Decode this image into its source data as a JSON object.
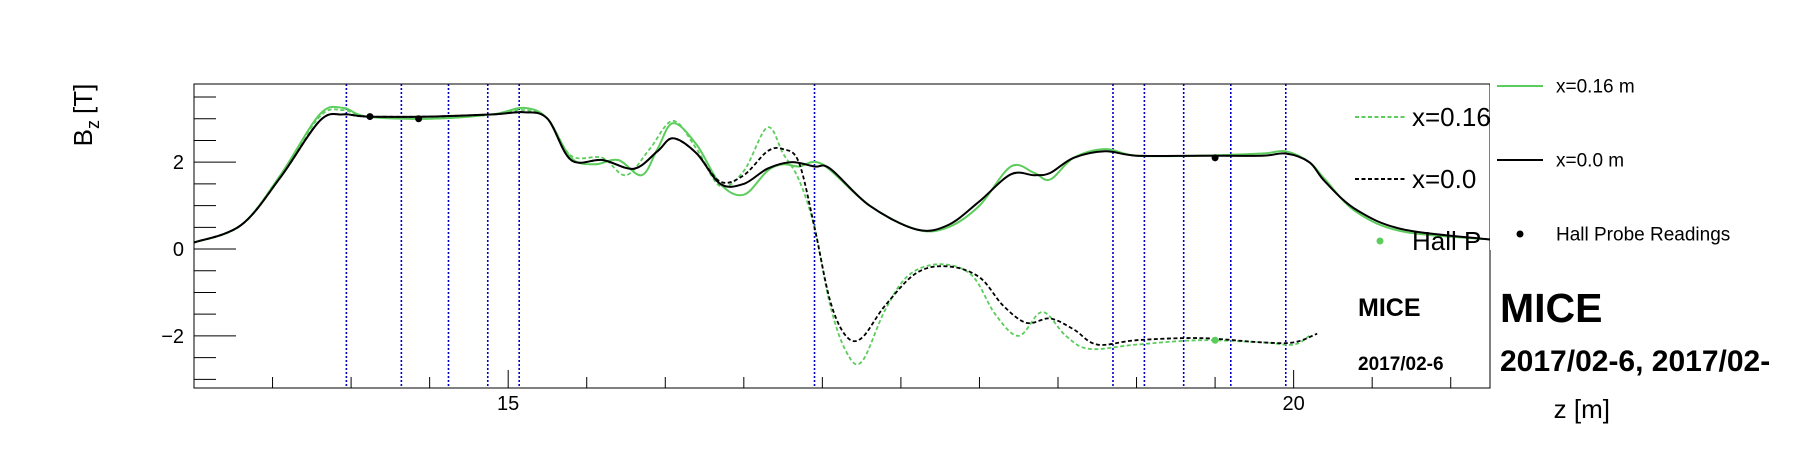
{
  "chart_data": {
    "type": "line",
    "title": "",
    "xlabel": "z [m]",
    "ylabel_main": "B",
    "ylabel_sub": "z",
    "ylabel_unit": "[T]",
    "xlim": [
      13.0,
      21.25
    ],
    "ylim": [
      -3.2,
      3.8
    ],
    "x_ticks": [
      15,
      20
    ],
    "y_ticks": [
      -2,
      0,
      2
    ],
    "y_tick_labels": [
      "−2",
      "0",
      "2"
    ],
    "grid": false,
    "colors": {
      "green": "#5ccd5c",
      "black": "#000000",
      "blue": "#0000cc"
    },
    "vertical_lines": [
      13.97,
      14.32,
      14.62,
      14.87,
      15.07,
      16.95,
      18.85,
      19.05,
      19.3,
      19.6,
      19.95
    ],
    "series": [
      {
        "name": "x=0.16 m",
        "color": "#5ccd5c",
        "style": "solid",
        "width": 2,
        "x": [
          13.0,
          13.3,
          13.55,
          13.8,
          13.95,
          14.1,
          14.5,
          14.9,
          15.1,
          15.25,
          15.4,
          15.55,
          15.7,
          15.85,
          15.95,
          16.05,
          16.2,
          16.35,
          16.5,
          16.65,
          16.75,
          16.85,
          17.0,
          17.3,
          17.6,
          17.8,
          18.0,
          18.2,
          18.35,
          18.45,
          18.6,
          18.8,
          19.0,
          19.4,
          19.8,
          19.95,
          20.1,
          20.2,
          20.4,
          20.7,
          21.25
        ],
        "y": [
          0.15,
          0.55,
          1.7,
          3.1,
          3.25,
          3.05,
          3.0,
          3.1,
          3.25,
          3.0,
          2.1,
          1.95,
          2.05,
          1.7,
          2.3,
          2.9,
          2.4,
          1.5,
          1.25,
          1.8,
          1.95,
          1.9,
          1.95,
          1.0,
          0.45,
          0.5,
          1.0,
          1.9,
          1.75,
          1.6,
          2.1,
          2.3,
          2.15,
          2.15,
          2.2,
          2.25,
          2.0,
          1.6,
          0.85,
          0.4,
          0.22
        ]
      },
      {
        "name": "x=0.16 m",
        "color": "#5ccd5c",
        "style": "dashed",
        "width": 1.8,
        "x": [
          13.0,
          13.3,
          13.55,
          13.8,
          13.95,
          14.1,
          14.5,
          14.9,
          15.1,
          15.25,
          15.4,
          15.6,
          15.75,
          15.9,
          16.05,
          16.2,
          16.35,
          16.5,
          16.65,
          16.75,
          16.85,
          16.95,
          17.05,
          17.15,
          17.25,
          17.4,
          17.55,
          17.75,
          17.95,
          18.1,
          18.25,
          18.4,
          18.55,
          18.7,
          19.0,
          19.4,
          19.8,
          20.0,
          20.1
        ],
        "y": [
          0.15,
          0.55,
          1.7,
          3.05,
          3.2,
          3.05,
          3.0,
          3.1,
          3.2,
          3.0,
          2.15,
          2.1,
          1.7,
          2.3,
          2.95,
          2.3,
          1.45,
          1.8,
          2.8,
          2.2,
          1.6,
          0.5,
          -1.3,
          -2.35,
          -2.6,
          -1.4,
          -0.6,
          -0.35,
          -0.6,
          -1.5,
          -2.0,
          -1.45,
          -2.0,
          -2.3,
          -2.2,
          -2.1,
          -2.15,
          -2.2,
          -2.0
        ]
      },
      {
        "name": "x=0.0 m",
        "color": "#000000",
        "style": "solid",
        "width": 2,
        "x": [
          13.0,
          13.3,
          13.55,
          13.8,
          13.95,
          14.1,
          14.5,
          14.9,
          15.1,
          15.25,
          15.4,
          15.6,
          15.8,
          15.95,
          16.05,
          16.2,
          16.35,
          16.5,
          16.65,
          16.8,
          16.95,
          17.05,
          17.3,
          17.6,
          17.8,
          18.0,
          18.2,
          18.35,
          18.45,
          18.6,
          18.8,
          19.0,
          19.4,
          19.8,
          19.95,
          20.1,
          20.2,
          20.4,
          20.7,
          21.25
        ],
        "y": [
          0.15,
          0.55,
          1.65,
          2.95,
          3.1,
          3.05,
          3.05,
          3.1,
          3.15,
          3.0,
          2.05,
          2.05,
          1.85,
          2.25,
          2.55,
          2.2,
          1.5,
          1.5,
          1.85,
          2.0,
          1.9,
          1.85,
          1.0,
          0.45,
          0.55,
          1.1,
          1.72,
          1.7,
          1.75,
          2.1,
          2.25,
          2.15,
          2.15,
          2.15,
          2.2,
          2.0,
          1.55,
          0.9,
          0.45,
          0.22
        ]
      },
      {
        "name": "x=0.0 m",
        "color": "#000000",
        "style": "dashed",
        "width": 1.8,
        "x": [
          13.0,
          13.3,
          13.55,
          13.8,
          13.95,
          14.1,
          14.5,
          14.9,
          15.1,
          15.25,
          15.4,
          15.6,
          15.8,
          15.95,
          16.05,
          16.2,
          16.35,
          16.5,
          16.65,
          16.75,
          16.85,
          16.95,
          17.05,
          17.15,
          17.25,
          17.4,
          17.6,
          17.8,
          18.0,
          18.15,
          18.3,
          18.45,
          18.6,
          18.75,
          19.0,
          19.4,
          19.8,
          20.0,
          20.15
        ],
        "y": [
          0.15,
          0.55,
          1.65,
          2.95,
          3.1,
          3.05,
          3.05,
          3.1,
          3.15,
          3.0,
          2.05,
          2.05,
          1.85,
          2.25,
          2.55,
          2.2,
          1.55,
          1.7,
          2.25,
          2.3,
          2.0,
          0.5,
          -1.2,
          -2.0,
          -2.05,
          -1.3,
          -0.55,
          -0.4,
          -0.65,
          -1.3,
          -1.7,
          -1.6,
          -1.85,
          -2.2,
          -2.1,
          -2.05,
          -2.15,
          -2.15,
          -1.95
        ]
      }
    ],
    "hall_probe_readings": [
      {
        "x": 14.12,
        "y": 3.05,
        "color": "#000000"
      },
      {
        "x": 14.43,
        "y": 3.0,
        "color": "#000000"
      },
      {
        "x": 19.5,
        "y": 2.1,
        "color": "#000000"
      },
      {
        "x": 19.5,
        "y": -2.1,
        "color": "#5ccd5c"
      }
    ],
    "legend_back": [
      {
        "label": "x=0.16",
        "style": "dashed",
        "color": "#5ccd5c"
      },
      {
        "label": "x=0.0",
        "style": "dashed",
        "color": "#000000"
      },
      {
        "label": "Hall P",
        "style": "marker",
        "color": "#5ccd5c"
      }
    ],
    "legend_front": [
      {
        "label": "x=0.16 m",
        "style": "solid",
        "color": "#5ccd5c"
      },
      {
        "label": "x=0.0 m",
        "style": "solid",
        "color": "#000000"
      },
      {
        "label": "Hall Probe Readings",
        "style": "marker",
        "color": "#000000"
      }
    ],
    "annotations": {
      "mice_small": "MICE",
      "date_small": "2017/02-6",
      "mice_large": "MICE",
      "date_large": "2017/02-6, 2017/02-"
    }
  }
}
